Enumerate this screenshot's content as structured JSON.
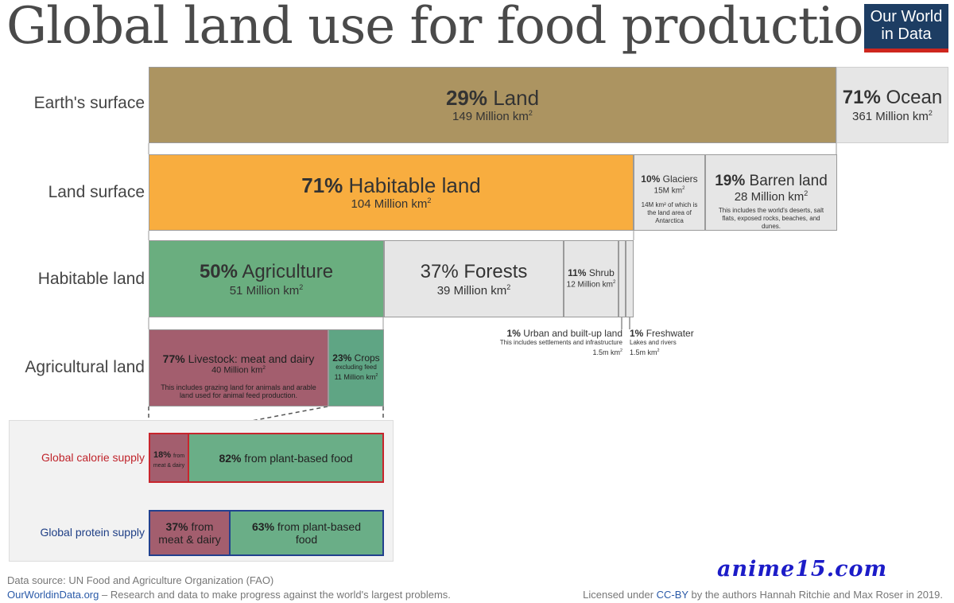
{
  "title": "Global land use for food production",
  "logo": {
    "line1": "Our World",
    "line2": "in Data"
  },
  "chart_data": {
    "type": "bar",
    "unit": "Million km²",
    "rows": [
      {
        "label": "Earth's surface",
        "segments": [
          {
            "name": "Land",
            "percent": 29,
            "pct_label": "29%",
            "area": "149 Million km",
            "color": "#ac9461"
          },
          {
            "name": "Ocean",
            "percent": 71,
            "pct_label": "71%",
            "area": "361 Million km",
            "color": "#e6e6e6"
          }
        ]
      },
      {
        "label": "Land surface",
        "segments": [
          {
            "name": "Habitable land",
            "percent": 71,
            "pct_label": "71%",
            "area": "104 Million km",
            "color": "#f8ad3f"
          },
          {
            "name": "Glaciers",
            "percent": 10,
            "pct_label": "10%",
            "area": "15M km",
            "note": "14M km² of which is the land area of Antarctica",
            "color": "#e6e6e6"
          },
          {
            "name": "Barren land",
            "percent": 19,
            "pct_label": "19%",
            "area": "28 Million km",
            "note": "This includes the world's deserts, salt flats, exposed rocks, beaches, and dunes.",
            "color": "#e6e6e6"
          }
        ]
      },
      {
        "label": "Habitable land",
        "segments": [
          {
            "name": "Agriculture",
            "percent": 50,
            "pct_label": "50%",
            "area": "51 Million km",
            "color": "#6aae7f"
          },
          {
            "name": "Forests",
            "percent": 37,
            "pct_label": "37%",
            "area": "39 Million km",
            "color": "#e6e6e6"
          },
          {
            "name": "Shrub",
            "percent": 11,
            "pct_label": "11%",
            "area": "12 Million km",
            "color": "#e6e6e6"
          },
          {
            "name": "Urban and built-up land",
            "percent": 1,
            "pct_label": "1%",
            "area": "1.5m km",
            "note": "This includes settlements and infrastructure",
            "color": "#e6e6e6"
          },
          {
            "name": "Freshwater",
            "percent": 1,
            "pct_label": "1%",
            "area": "1.5m km",
            "note": "Lakes and rivers",
            "color": "#e6e6e6"
          }
        ]
      },
      {
        "label": "Agricultural land",
        "segments": [
          {
            "name": "Livestock: meat and dairy",
            "percent": 77,
            "pct_label": "77%",
            "area": "40 Million km",
            "note": "This includes grazing land for animals and arable land used for animal feed production.",
            "color": "#a35e6e"
          },
          {
            "name": "Crops",
            "percent": 23,
            "pct_label": "23%",
            "area": "11 Million km",
            "note": "excluding feed",
            "color": "#5fa584"
          }
        ]
      },
      {
        "label": "Global calorie supply",
        "label_color": "#c0242b",
        "border_color": "#c8252d",
        "segments": [
          {
            "name": "from meat & dairy",
            "percent": 18,
            "pct_label": "18%",
            "color": "#a35e6e"
          },
          {
            "name": "from plant-based food",
            "percent": 82,
            "pct_label": "82%",
            "color": "#6aae87"
          }
        ]
      },
      {
        "label": "Global protein supply",
        "label_color": "#1f3f86",
        "border_color": "#22418e",
        "segments": [
          {
            "name": "from meat & dairy",
            "percent": 37,
            "pct_label": "37%",
            "color": "#a35e6e"
          },
          {
            "name": "from plant-based food",
            "percent": 63,
            "pct_label": "63%",
            "color": "#6aae87"
          }
        ]
      }
    ]
  },
  "footer": {
    "source": "Data source: UN Food and Agriculture Organization (FAO)",
    "site": "OurWorldinData.org",
    "tagline": " – Research and data to make progress against the world's largest problems.",
    "license_prefix": "Licensed under ",
    "license_link": "CC-BY",
    "license_suffix": " by the authors Hannah Ritchie and Max Roser in 2019."
  },
  "watermark": "anime15.com"
}
